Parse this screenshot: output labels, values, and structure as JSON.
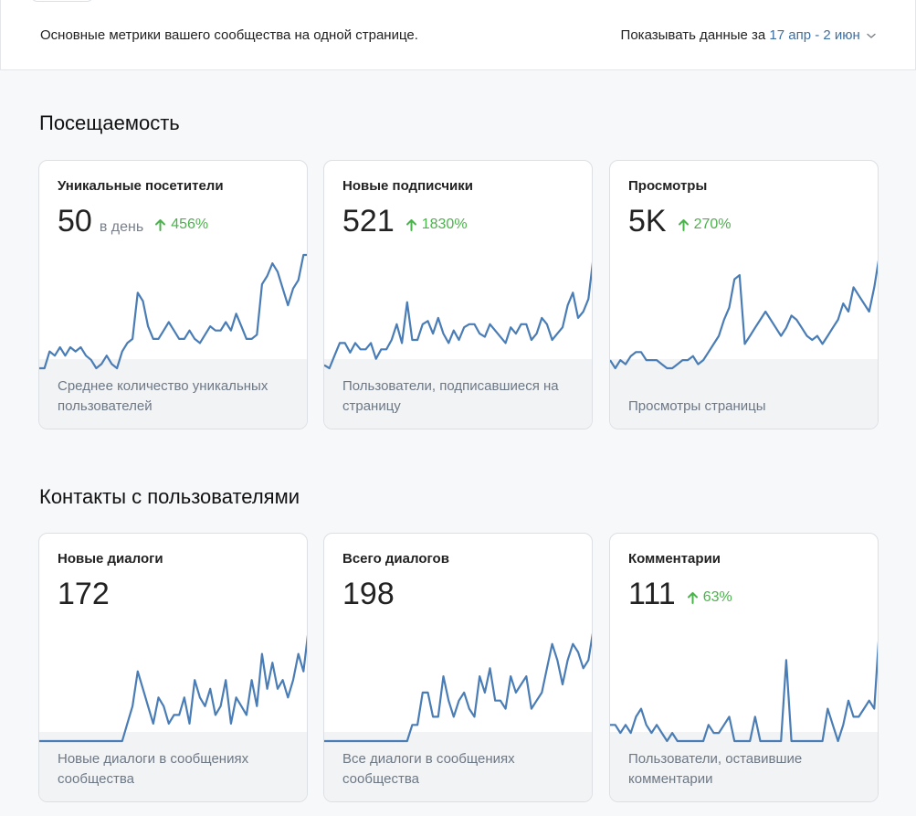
{
  "header": {
    "intro": "Основные метрики вашего сообщества на одной странице.",
    "period_label": "Показывать данные за",
    "period_value": "17 апр - 2 июн"
  },
  "colors": {
    "line": "#4a7db5",
    "positive": "#4bb34b",
    "link": "#3e6fa3"
  },
  "sections": [
    {
      "title": "Посещаемость",
      "cards": [
        {
          "title": "Уникальные посетители",
          "value": "50",
          "unit": "в день",
          "delta": "456%",
          "description": "Среднее количество уникальных пользователей",
          "chart_data": {
            "type": "line",
            "y": [
              5,
              5,
              9,
              8,
              10,
              8,
              10,
              9,
              10,
              8,
              7,
              5,
              6,
              8,
              6,
              5,
              9,
              11,
              12,
              23,
              21,
              15,
              12,
              12,
              14,
              16,
              14,
              12,
              12,
              14,
              12,
              11,
              13,
              15,
              14,
              14,
              16,
              14,
              18,
              15,
              12,
              12,
              13,
              25,
              27,
              30,
              28,
              24,
              20,
              24,
              26,
              32,
              32
            ]
          }
        },
        {
          "title": "Новые подписчики",
          "value": "521",
          "delta": "1830%",
          "description": "Пользователи, подписавшиеся на страницу",
          "chart_data": {
            "type": "line",
            "y": [
              5,
              4,
              8,
              12,
              12,
              9,
              12,
              10,
              10,
              12,
              7,
              10,
              10,
              13,
              18,
              12,
              25,
              13,
              13,
              18,
              19,
              15,
              20,
              15,
              12,
              16,
              13,
              17,
              18,
              18,
              15,
              14,
              18,
              16,
              14,
              12,
              17,
              15,
              18,
              18,
              13,
              15,
              20,
              18,
              13,
              15,
              17,
              24,
              28,
              20,
              22,
              26,
              40
            ]
          }
        },
        {
          "title": "Просмотры",
          "value": "5K",
          "delta": "270%",
          "description": "Просмотры страницы",
          "chart_data": {
            "type": "line",
            "y": [
              12,
              10,
              12,
              11,
              13,
              14,
              14,
              12,
              12,
              12,
              11,
              10,
              10,
              11,
              12,
              12,
              13,
              11,
              12,
              14,
              16,
              18,
              22,
              25,
              32,
              33,
              16,
              18,
              20,
              22,
              24,
              22,
              20,
              18,
              20,
              23,
              22,
              20,
              18,
              17,
              18,
              16,
              18,
              20,
              22,
              26,
              24,
              30,
              28,
              26,
              24,
              30,
              38
            ]
          }
        }
      ]
    },
    {
      "title": "Контакты с пользователями",
      "cards": [
        {
          "title": "Новые диалоги",
          "value": "172",
          "description": "Новые диалоги в сообщениях сообщества",
          "chart_data": {
            "type": "line",
            "y": [
              0,
              0,
              0,
              0,
              0,
              0,
              0,
              0,
              0,
              0,
              0,
              0,
              0,
              0,
              0,
              0,
              0,
              2,
              4,
              8,
              6,
              4,
              2,
              5,
              4,
              2,
              3,
              3,
              5,
              2,
              7,
              5,
              4,
              6,
              3,
              4,
              7,
              2,
              5,
              4,
              3,
              7,
              4,
              10,
              6,
              9,
              6,
              7,
              5,
              7,
              10,
              8,
              13
            ]
          }
        },
        {
          "title": "Всего диалогов",
          "value": "198",
          "description": "Все диалоги в сообщениях сообщества",
          "chart_data": {
            "type": "line",
            "y": [
              0,
              0,
              0,
              0,
              0,
              0,
              0,
              0,
              0,
              0,
              0,
              0,
              0,
              0,
              0,
              0,
              0,
              2,
              2,
              6,
              6,
              3,
              3,
              8,
              5,
              3,
              5,
              6,
              4,
              3,
              8,
              6,
              9,
              5,
              5,
              4,
              8,
              6,
              7,
              8,
              4,
              5,
              6,
              9,
              12,
              10,
              7,
              10,
              12,
              11,
              9,
              10,
              14
            ]
          }
        },
        {
          "title": "Комментарии",
          "value": "111",
          "delta": "63%",
          "description": "Пользователи, оставившие комментарии",
          "chart_data": {
            "type": "line",
            "y": [
              2,
              2,
              1,
              2,
              1,
              3,
              4,
              2,
              1,
              2,
              1,
              0,
              1,
              0,
              0,
              0,
              0,
              0,
              0,
              2,
              1,
              1,
              2,
              3,
              0,
              0,
              0,
              0,
              3,
              0,
              0,
              0,
              0,
              0,
              10,
              0,
              0,
              0,
              0,
              0,
              0,
              0,
              4,
              2,
              0,
              2,
              5,
              3,
              3,
              4,
              5,
              4,
              14
            ]
          }
        }
      ]
    }
  ]
}
